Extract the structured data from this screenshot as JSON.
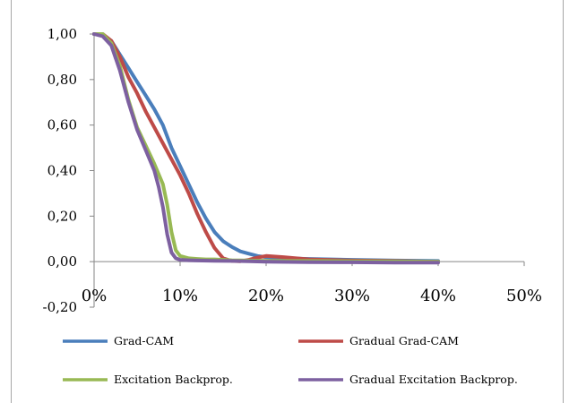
{
  "chart_data": {
    "type": "line",
    "title": "",
    "xlabel": "",
    "ylabel": "",
    "xlim": [
      0,
      50
    ],
    "ylim": [
      -0.2,
      1.0
    ],
    "x_ticks": [
      "0%",
      "10%",
      "20%",
      "30%",
      "40%",
      "50%"
    ],
    "y_ticks": [
      "1,00",
      "0,80",
      "0,60",
      "0,40",
      "0,20",
      "0,00",
      "-0,20"
    ],
    "grid": false,
    "legend_position": "bottom",
    "series": [
      {
        "name": "Grad-CAM",
        "color": "#4a7ebb",
        "x": [
          0,
          1,
          2,
          3,
          4,
          5,
          6,
          7,
          8,
          9,
          10,
          11,
          12,
          13,
          14,
          15,
          16,
          17,
          18,
          19,
          20,
          22,
          25,
          30,
          35,
          40
        ],
        "y": [
          1.0,
          0.995,
          0.97,
          0.91,
          0.85,
          0.79,
          0.73,
          0.67,
          0.6,
          0.5,
          0.42,
          0.34,
          0.26,
          0.19,
          0.13,
          0.09,
          0.065,
          0.045,
          0.035,
          0.025,
          0.02,
          0.015,
          0.012,
          0.008,
          0.005,
          0.003
        ]
      },
      {
        "name": "Gradual Grad-CAM",
        "color": "#be4b48",
        "x": [
          0,
          1,
          2,
          3,
          4,
          5,
          6,
          7,
          8,
          9,
          10,
          11,
          12,
          13,
          14,
          15,
          16,
          17,
          18,
          19,
          20,
          22,
          25,
          30,
          35,
          40
        ],
        "y": [
          1.0,
          1.0,
          0.97,
          0.9,
          0.81,
          0.74,
          0.66,
          0.59,
          0.52,
          0.45,
          0.38,
          0.3,
          0.21,
          0.13,
          0.06,
          0.015,
          0.003,
          0.002,
          0.008,
          0.018,
          0.025,
          0.02,
          0.01,
          0.005,
          0.003,
          0.0
        ]
      },
      {
        "name": "Excitation Backprop.",
        "color": "#98b954",
        "x": [
          0,
          1,
          2,
          3,
          4,
          5,
          6,
          7,
          8,
          8.5,
          9,
          9.5,
          10,
          11,
          12,
          13,
          14,
          15,
          16,
          18,
          20,
          25,
          30,
          35,
          40
        ],
        "y": [
          1.0,
          1.0,
          0.96,
          0.86,
          0.71,
          0.59,
          0.51,
          0.43,
          0.34,
          0.25,
          0.13,
          0.05,
          0.025,
          0.015,
          0.012,
          0.01,
          0.01,
          0.008,
          0.006,
          0.005,
          0.004,
          0.003,
          0.002,
          0.001,
          0.0
        ]
      },
      {
        "name": "Gradual Excitation Backprop.",
        "color": "#7d60a0",
        "x": [
          0,
          1,
          2,
          3,
          4,
          5,
          6,
          7,
          7.5,
          8,
          8.5,
          9,
          9.5,
          10,
          11,
          12,
          14,
          16,
          18,
          20,
          25,
          30,
          35,
          40
        ],
        "y": [
          1.0,
          0.99,
          0.95,
          0.84,
          0.7,
          0.58,
          0.49,
          0.4,
          0.33,
          0.24,
          0.12,
          0.04,
          0.015,
          0.008,
          0.006,
          0.005,
          0.004,
          0.003,
          0.002,
          0.0,
          -0.002,
          -0.003,
          -0.004,
          -0.004
        ]
      }
    ]
  }
}
